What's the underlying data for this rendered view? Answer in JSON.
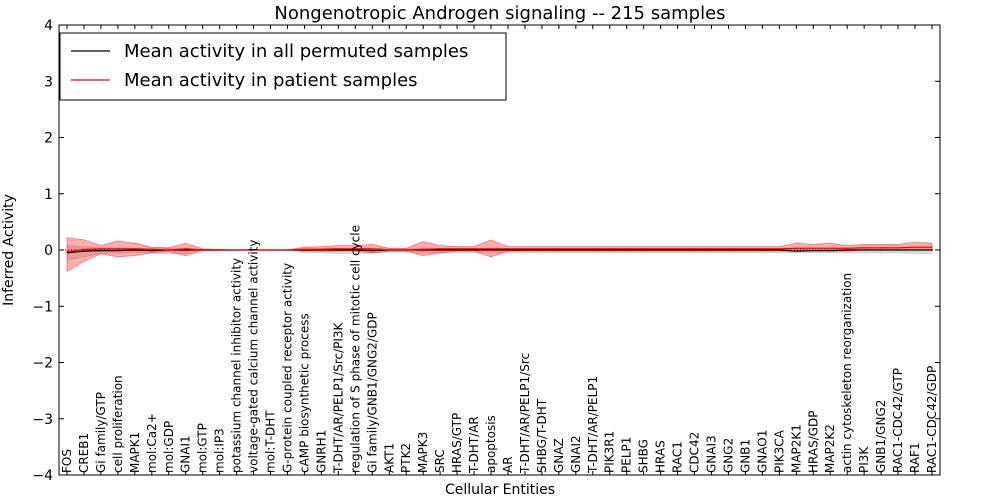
{
  "chart_data": {
    "type": "line",
    "title": "Nongenotropic Androgen signaling -- 215 samples",
    "xlabel": "Cellular Entities",
    "ylabel": "Inferred Activity",
    "ylim": [
      -4,
      4
    ],
    "yticks": [
      -4,
      -3,
      -2,
      -1,
      0,
      1,
      2,
      3,
      4
    ],
    "ytick_labels": [
      "−4",
      "−3",
      "−2",
      "−1",
      "0",
      "1",
      "2",
      "3",
      "4"
    ],
    "legend_position": "top-left",
    "categories": [
      "FOS",
      "CREB1",
      "Gi family/GTP",
      "cell proliferation",
      "MAPK1",
      "mol:Ca2+",
      "mol:GDP",
      "GNAI1",
      "mol:GTP",
      "mol:IP3",
      "potassium channel inhibitor activity",
      "voltage-gated calcium channel activity",
      "mol:T-DHT",
      "G-protein coupled receptor activity",
      "cAMP biosynthetic process",
      "GNRH1",
      "T-DHT/AR/PELP1/Src/PI3K",
      "regulation of S phase of mitotic cell cycle",
      "Gi family/GNB1/GNG2/GDP",
      "AKT1",
      "PTK2",
      "MAPK3",
      "SRC",
      "HRAS/GTP",
      "T-DHT/AR",
      "apoptosis",
      "AR",
      "T-DHT/AR/PELP1/Src",
      "SHBG/T-DHT",
      "GNAZ",
      "GNAI2",
      "T-DHT/AR/PELP1",
      "PIK3R1",
      "PELP1",
      "SHBG",
      "HRAS",
      "RAC1",
      "CDC42",
      "GNAI3",
      "GNG2",
      "GNB1",
      "GNAO1",
      "PIK3CA",
      "MAP2K1",
      "HRAS/GDP",
      "MAP2K2",
      "actin cytoskeleton reorganization",
      "PI3K",
      "GNB1/GNG2",
      "RAC1-CDC42/GTP",
      "RAF1",
      "RAC1-CDC42/GDP"
    ],
    "series": [
      {
        "name": "Mean activity in all permuted samples",
        "color": "#000000",
        "values": [
          -0.05,
          -0.02,
          -0.01,
          -0.01,
          0,
          -0.01,
          0,
          0,
          0,
          0,
          0,
          0,
          0,
          0,
          0,
          0,
          0,
          0,
          -0.01,
          0,
          0,
          0,
          0,
          0,
          0,
          0,
          0,
          0,
          0,
          0,
          0,
          0,
          0,
          0,
          0,
          0,
          0,
          0,
          0,
          0,
          0,
          0,
          0,
          -0.02,
          -0.01,
          -0.01,
          0,
          0,
          0,
          0,
          0,
          0
        ],
        "band_lower": [
          -0.18,
          -0.12,
          -0.06,
          -0.06,
          -0.04,
          -0.06,
          -0.06,
          -0.06,
          -0.01,
          -0.01,
          0,
          0,
          0,
          0,
          -0.04,
          -0.05,
          -0.06,
          -0.06,
          -0.06,
          -0.03,
          -0.03,
          -0.05,
          -0.05,
          -0.05,
          -0.05,
          -0.05,
          -0.05,
          -0.05,
          -0.05,
          -0.05,
          -0.05,
          -0.05,
          -0.05,
          -0.05,
          -0.05,
          -0.05,
          -0.05,
          -0.05,
          -0.05,
          -0.05,
          -0.05,
          -0.05,
          -0.05,
          -0.05,
          -0.05,
          -0.05,
          -0.05,
          -0.05,
          -0.05,
          -0.05,
          -0.06,
          -0.06
        ],
        "band_upper": [
          0.08,
          0.06,
          0.04,
          0.04,
          0.03,
          0.03,
          0.03,
          0.03,
          0.01,
          0.01,
          0,
          0,
          0,
          0,
          0.03,
          0.03,
          0.03,
          0.03,
          0.03,
          0.02,
          0.02,
          0.03,
          0.03,
          0.03,
          0.03,
          0.03,
          0.03,
          0.03,
          0.03,
          0.03,
          0.03,
          0.03,
          0.03,
          0.03,
          0.03,
          0.03,
          0.03,
          0.03,
          0.03,
          0.03,
          0.03,
          0.03,
          0.03,
          0.04,
          0.04,
          0.04,
          0.04,
          0.04,
          0.04,
          0.04,
          0.05,
          0.05
        ]
      },
      {
        "name": "Mean activity in patient samples",
        "color": "#ff0000",
        "values": [
          -0.03,
          0.01,
          0.02,
          0.02,
          0.02,
          0.01,
          0,
          0.02,
          0,
          0,
          0,
          0,
          0,
          0,
          0.01,
          0.01,
          0.02,
          0.02,
          0.02,
          0,
          0,
          0.01,
          0.02,
          0.02,
          0.02,
          0.02,
          0.02,
          0.02,
          0.02,
          0.02,
          0.02,
          0.02,
          0.02,
          0.02,
          0.02,
          0.02,
          0.02,
          0.02,
          0.02,
          0.02,
          0.02,
          0.02,
          0.02,
          0.03,
          0.03,
          0.03,
          0.03,
          0.04,
          0.04,
          0.04,
          0.05,
          0.05
        ],
        "band_lower": [
          -0.38,
          -0.2,
          -0.07,
          -0.12,
          -0.1,
          -0.05,
          -0.03,
          -0.1,
          -0.01,
          0,
          0,
          0,
          0,
          0,
          -0.02,
          -0.02,
          -0.02,
          -0.02,
          -0.05,
          -0.02,
          -0.02,
          -0.1,
          -0.05,
          -0.02,
          -0.02,
          -0.12,
          -0.02,
          -0.02,
          -0.02,
          -0.02,
          -0.02,
          -0.02,
          -0.02,
          -0.02,
          -0.02,
          -0.02,
          -0.02,
          -0.02,
          -0.02,
          -0.02,
          -0.02,
          -0.02,
          -0.02,
          -0.02,
          -0.02,
          -0.02,
          -0.02,
          0,
          0,
          0,
          0,
          0
        ],
        "band_upper": [
          0.22,
          0.18,
          0.08,
          0.16,
          0.12,
          0.05,
          0.04,
          0.12,
          0.02,
          0.01,
          0,
          0,
          0,
          0,
          0.05,
          0.06,
          0.08,
          0.08,
          0.1,
          0.03,
          0.03,
          0.15,
          0.08,
          0.06,
          0.06,
          0.18,
          0.06,
          0.06,
          0.06,
          0.06,
          0.06,
          0.06,
          0.06,
          0.06,
          0.06,
          0.06,
          0.06,
          0.06,
          0.06,
          0.06,
          0.06,
          0.06,
          0.06,
          0.12,
          0.1,
          0.12,
          0.08,
          0.1,
          0.1,
          0.1,
          0.14,
          0.12
        ]
      }
    ]
  }
}
